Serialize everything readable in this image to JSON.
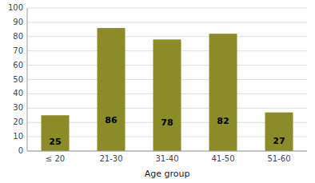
{
  "chart_data": {
    "type": "bar",
    "categories": [
      "≤ 20",
      "21-30",
      "31-40",
      "41-50",
      "51-60"
    ],
    "values": [
      25,
      86,
      78,
      82,
      27
    ],
    "color": "#8B8C28",
    "xlabel": "Age group",
    "ylim": [
      0,
      100
    ],
    "yticks": [
      0,
      10,
      20,
      30,
      40,
      50,
      60,
      70,
      80,
      90,
      100
    ],
    "grid": true,
    "data_labels": true
  }
}
